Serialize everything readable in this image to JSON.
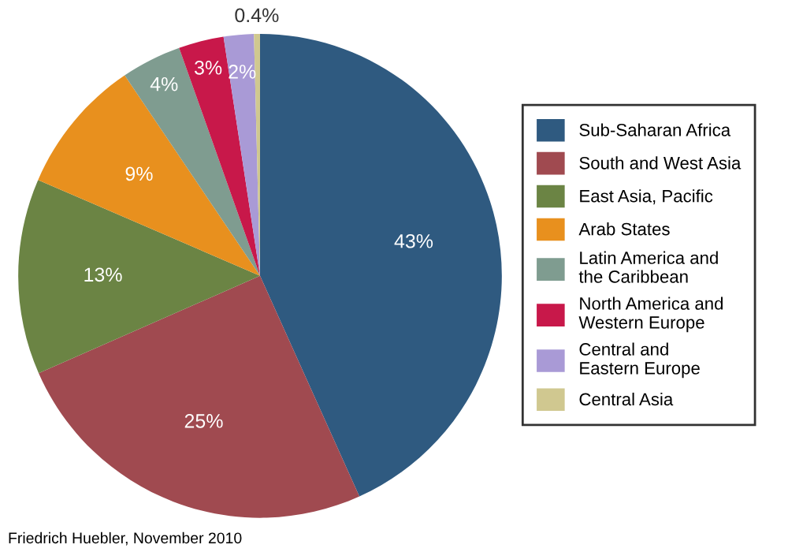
{
  "chart_data": {
    "type": "pie",
    "categories": [
      "Sub-Saharan Africa",
      "South and West Asia",
      "East Asia, Pacific",
      "Arab States",
      "Latin America and\nthe Caribbean",
      "North America and\nWestern Europe",
      "Central and\nEastern Europe",
      "Central Asia"
    ],
    "values": [
      43,
      25,
      13,
      9,
      4,
      3,
      2,
      0.4
    ],
    "value_labels": [
      "43%",
      "25%",
      "13%",
      "9%",
      "4%",
      "3%",
      "2%",
      "0.4%"
    ],
    "colors": [
      "#2f5a80",
      "#a04a50",
      "#6b8444",
      "#e8901e",
      "#7f9c90",
      "#c8184a",
      "#a99ad6",
      "#d0c890"
    ],
    "legend": "right",
    "annotations": [
      "Friedrich Huebler, November 2010"
    ]
  }
}
